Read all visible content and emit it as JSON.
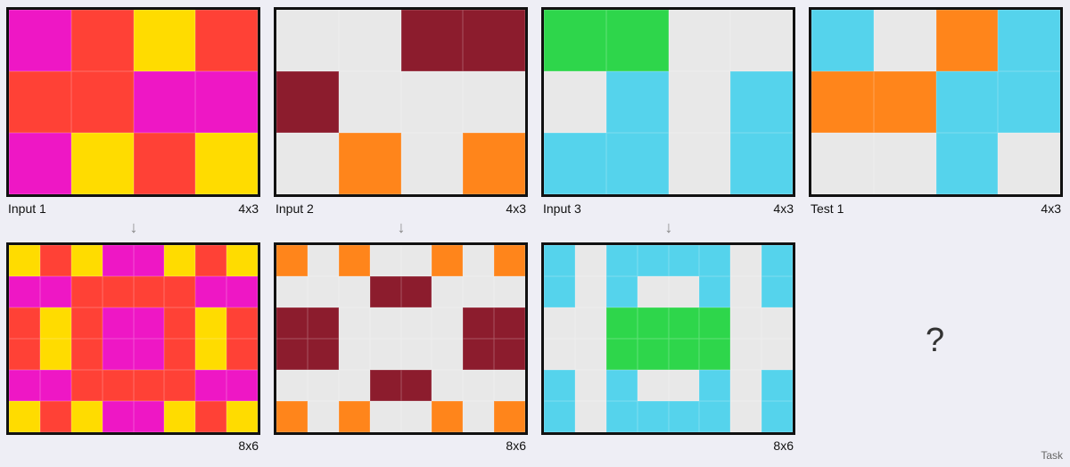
{
  "palette": {
    "M": "#ee17c5",
    "R": "#ff4136",
    "Y": "#ffdc00",
    "G": "#e8e8e8",
    "D": "#8c1c2d",
    "O": "#ff851b",
    "L": "#2ed64b",
    "C": "#55d3ec"
  },
  "panels": [
    {
      "id": "input-1",
      "label": "Input 1",
      "dims": "4x3",
      "rows": [
        "MRYR",
        "RRMM",
        "MYRY"
      ]
    },
    {
      "id": "input-2",
      "label": "Input 2",
      "dims": "4x3",
      "rows": [
        "GGDD",
        "DGGG",
        "GOGO"
      ]
    },
    {
      "id": "input-3",
      "label": "Input 3",
      "dims": "4x3",
      "rows": [
        "LLGG",
        "GCGC",
        "CCGC"
      ]
    },
    {
      "id": "test-1",
      "label": "Test 1",
      "dims": "4x3",
      "rows": [
        "CGOC",
        "OOCC",
        "GGCG"
      ]
    },
    {
      "id": "output-1",
      "label": "",
      "dims": "8x6",
      "rows": [
        "YRYMMYRY",
        "MMRRRRMM",
        "RYRMMRYR",
        "RYRMMRYR",
        "MMRRRRMM",
        "YRYMMYRY"
      ]
    },
    {
      "id": "output-2",
      "label": "",
      "dims": "8x6",
      "rows": [
        "OGOGGOGO",
        "GGGDDGGG",
        "DDGGGGDD",
        "DDGGGGDD",
        "GGGDDGGG",
        "OGOGGOGO"
      ]
    },
    {
      "id": "output-3",
      "label": "",
      "dims": "8x6",
      "rows": [
        "CGCCCCGC",
        "CGCGGCGC",
        "GGLLLLGG",
        "GGLLLLGG",
        "CGCGGCGC",
        "CGCCCCGC"
      ]
    }
  ],
  "arrow_glyph": "↓",
  "unknown_output": "?",
  "corner_label": "Task"
}
